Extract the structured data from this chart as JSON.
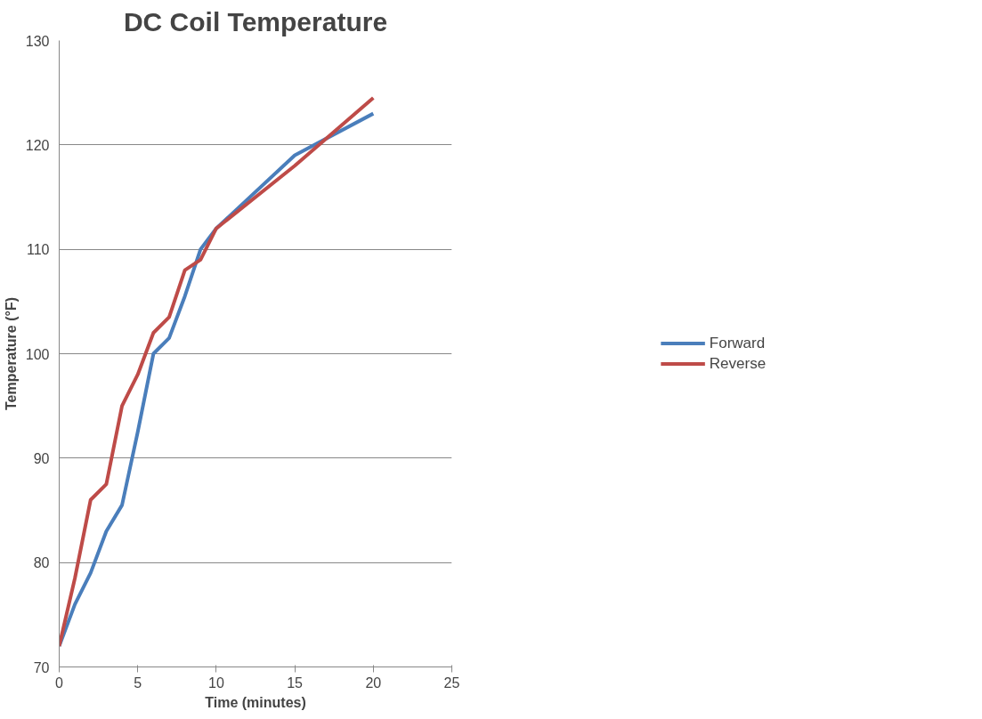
{
  "chart_data": {
    "type": "line",
    "title": "DC Coil Temperature",
    "xlabel": "Time (minutes)",
    "ylabel": "Temperature (°F)",
    "x": [
      0,
      1,
      2,
      3,
      4,
      5,
      6,
      7,
      8,
      9,
      10,
      15,
      20
    ],
    "series": [
      {
        "name": "Forward",
        "color": "#4a7ebb",
        "values": [
          72,
          76,
          79,
          83,
          85.5,
          92.5,
          100,
          101.5,
          105.5,
          110,
          112,
          119,
          123
        ]
      },
      {
        "name": "Reverse",
        "color": "#be4b48",
        "values": [
          72,
          78.5,
          86,
          87.5,
          95,
          98,
          102,
          103.5,
          108,
          109,
          112,
          118,
          124.5
        ]
      }
    ],
    "xlim": [
      0,
      25
    ],
    "xticks": [
      0,
      5,
      10,
      15,
      20,
      25
    ],
    "ylim": [
      70,
      130
    ],
    "yticks": [
      70,
      80,
      90,
      100,
      110,
      120,
      130
    ],
    "grid": "y",
    "legend": "right",
    "marker": "none",
    "line_style": "solid"
  }
}
